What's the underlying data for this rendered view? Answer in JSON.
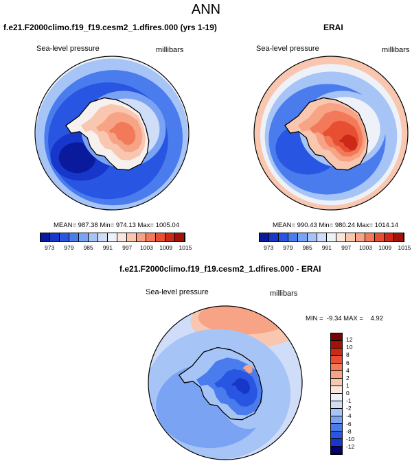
{
  "figure": {
    "title": "ANN",
    "colors": {
      "ramp": [
        "#08006e",
        "#0a1a9c",
        "#1637c9",
        "#2856e2",
        "#4a7cee",
        "#7aa3f4",
        "#a7c4f7",
        "#d0ddf8",
        "#eef2f8",
        "#fbe6dc",
        "#f9c6b0",
        "#f6a485",
        "#f27a5b",
        "#e84e32",
        "#cc2a16",
        "#a31208",
        "#770501"
      ],
      "land_lo": "#f9c9b4",
      "land_hi": "#ee7a57"
    }
  },
  "panels": {
    "model": {
      "title": "f.e21.F2000climo.f19_f19.cesm2_1.dfires.000 (yrs 1-19)",
      "left_label": "Sea-level pressure",
      "right_label": "millibars",
      "stats": "MEAN= 987.38  Min= 974.13  Max= 1005.04",
      "colorbar": {
        "ticks": [
          "973",
          "979",
          "985",
          "991",
          "997",
          "1003",
          "1009",
          "1015"
        ],
        "n_colors": 15
      }
    },
    "obs": {
      "title": "ERAI",
      "left_label": "Sea-level pressure",
      "right_label": "millibars",
      "stats": "MEAN= 990.43  Min= 980.24  Max= 1014.14",
      "colorbar": {
        "ticks": [
          "973",
          "979",
          "985",
          "991",
          "997",
          "1003",
          "1009",
          "1015"
        ],
        "n_colors": 15
      }
    },
    "diff": {
      "title": "f.e21.F2000climo.f19_f19.cesm2_1.dfires.000 - ERAI",
      "left_label": "Sea-level pressure",
      "right_label": "millibars",
      "stats": "MIN =  -9.34 MAX =    4.92",
      "colorbar": {
        "ticks": [
          "12",
          "10",
          "8",
          "6",
          "4",
          "2",
          "1",
          "0",
          "-1",
          "-2",
          "-4",
          "-6",
          "-8",
          "-10",
          "-12"
        ],
        "colors": [
          "#770501",
          "#a31208",
          "#cc2a16",
          "#e84e32",
          "#f27a5b",
          "#f6a485",
          "#f9c6b0",
          "#fbe6dc",
          "#eef2f8",
          "#d0ddf8",
          "#a7c4f7",
          "#7aa3f4",
          "#4a7cee",
          "#2856e2",
          "#1637c9",
          "#08006e"
        ]
      }
    }
  }
}
